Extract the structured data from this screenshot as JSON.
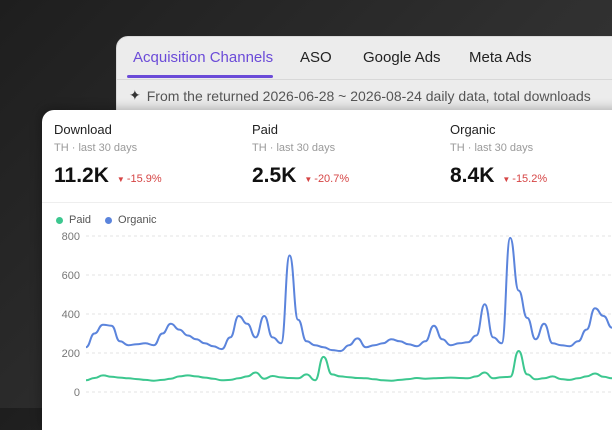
{
  "tabs": [
    {
      "label": "Acquisition Channels",
      "active": true
    },
    {
      "label": "ASO",
      "active": false
    },
    {
      "label": "Google Ads",
      "active": false
    },
    {
      "label": "Meta Ads",
      "active": false
    }
  ],
  "info_text": "From the returned 2026-06-28 ~ 2026-08-24 daily data, total downloads",
  "metrics": [
    {
      "title": "Download",
      "subtitle": "TH · last 30 days",
      "value": "11.2K",
      "change": "-15.9%"
    },
    {
      "title": "Paid",
      "subtitle": "TH · last 30 days",
      "value": "2.5K",
      "change": "-20.7%"
    },
    {
      "title": "Organic",
      "subtitle": "TH · last 30 days",
      "value": "8.4K",
      "change": "-15.2%"
    }
  ],
  "colors": {
    "accent": "#6b4bd8",
    "paid": "#3cc78f",
    "organic": "#5b84dc",
    "negative": "#d64545"
  },
  "chart_data": {
    "type": "line",
    "legend": [
      "Paid",
      "Organic"
    ],
    "yticks": [
      "800",
      "600",
      "400",
      "200",
      "0"
    ],
    "ylim": [
      0,
      800
    ],
    "grid": true,
    "series": [
      {
        "name": "Paid",
        "values": [
          60,
          72,
          85,
          78,
          74,
          70,
          66,
          62,
          58,
          62,
          68,
          80,
          85,
          80,
          74,
          68,
          60,
          62,
          70,
          80,
          100,
          68,
          82,
          75,
          72,
          70,
          90,
          60,
          180,
          90,
          80,
          76,
          72,
          70,
          65,
          60,
          58,
          62,
          66,
          72,
          68,
          70,
          72,
          74,
          72,
          70,
          80,
          100,
          70,
          76,
          78,
          210,
          90,
          65,
          70,
          80,
          66,
          62,
          70,
          80,
          95,
          78,
          70
        ]
      },
      {
        "name": "Organic",
        "values": [
          230,
          300,
          345,
          340,
          260,
          240,
          245,
          250,
          240,
          300,
          350,
          320,
          290,
          270,
          250,
          235,
          220,
          280,
          390,
          350,
          280,
          390,
          280,
          250,
          700,
          370,
          260,
          240,
          230,
          215,
          210,
          240,
          275,
          230,
          240,
          250,
          270,
          260,
          245,
          235,
          260,
          340,
          270,
          240,
          250,
          255,
          290,
          450,
          280,
          250,
          790,
          520,
          380,
          270,
          350,
          250,
          240,
          235,
          260,
          320,
          430,
          390,
          330
        ]
      }
    ]
  }
}
